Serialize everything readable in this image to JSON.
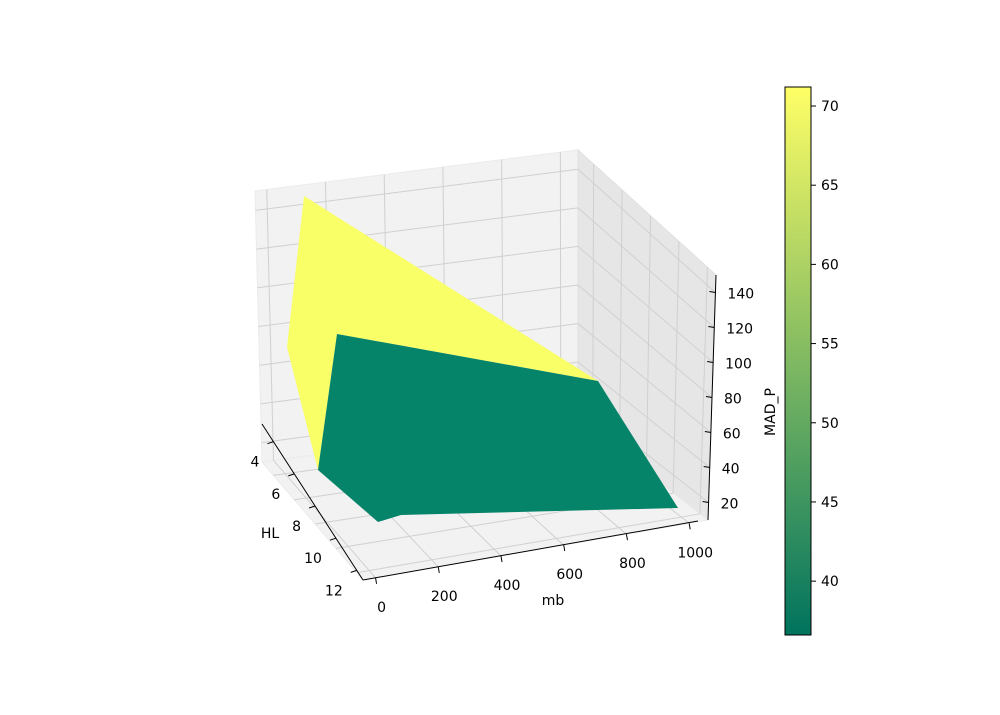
{
  "chart_data": {
    "type": "surface",
    "projection": "3d",
    "xlabel": "mb",
    "ylabel": "HL",
    "zlabel": "MAD_P",
    "x_ticks": [
      "0",
      "200",
      "400",
      "600",
      "800",
      "1000"
    ],
    "y_ticks": [
      "4",
      "6",
      "8",
      "10",
      "12"
    ],
    "z_ticks": [
      "20",
      "40",
      "60",
      "80",
      "100",
      "120",
      "140"
    ],
    "colorbar_ticks": [
      "40",
      "45",
      "50",
      "55",
      "60",
      "65",
      "70"
    ],
    "colorbar_range": [
      36.6,
      71.2
    ],
    "colormap": [
      "#00735e",
      "#ffff66"
    ],
    "grid": true,
    "faces": [
      {
        "value": 71,
        "color": "#f9ff66"
      },
      {
        "value": 37,
        "color": "#06846a"
      }
    ]
  }
}
